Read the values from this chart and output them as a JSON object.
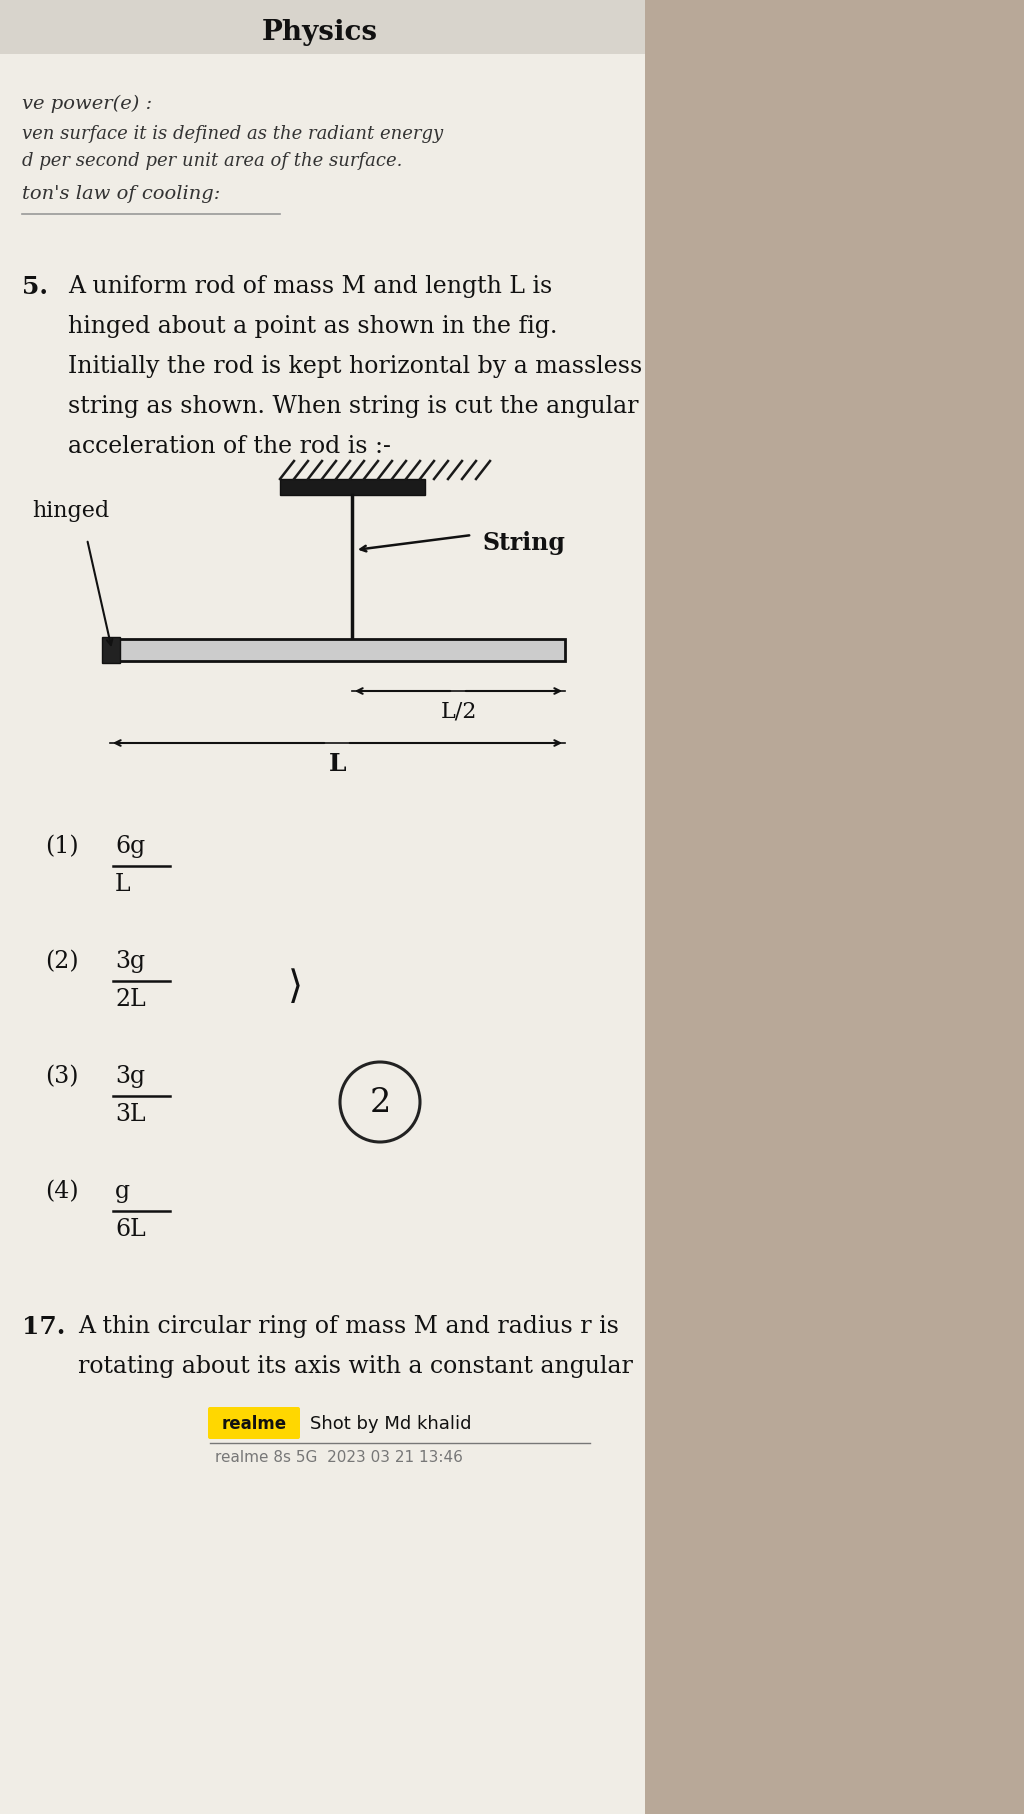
{
  "bg_color": "#b8a898",
  "page_bg": "#f0ede6",
  "page_bg2": "#e8e5de",
  "header_bg": "#d8d4cc",
  "right_bg": "#b8a898",
  "title": "Physics",
  "prev_lines": [
    "ve power(e) :",
    "ven surface it is defined as the radiant energy",
    "d per second per unit area of the surface.",
    "ton's law of cooling:"
  ],
  "q5_num": "5.",
  "q5_lines": [
    "A uniform rod of mass M and length L is",
    "hinged about a point as shown in the fig.",
    "Initially the rod is kept horizontal by a massless",
    "string as shown. When string is cut the angular",
    "acceleration of the rod is :-"
  ],
  "label_string": "String",
  "label_hinged": "hinged",
  "label_L2": "L/2",
  "label_L": "L",
  "options": [
    {
      "num": "(1)",
      "numer": "6g",
      "denom": "L"
    },
    {
      "num": "(2)",
      "numer": "3g",
      "denom": "2L"
    },
    {
      "num": "(3)",
      "numer": "3g",
      "denom": "3L"
    },
    {
      "num": "(4)",
      "numer": "g",
      "denom": "6L"
    }
  ],
  "q17_num": "17.",
  "q17_lines": [
    "A thin circular ring of mass M and radius r is",
    "rotating about its axis with a constant angular"
  ],
  "realme_badge": "realme",
  "realme_text": "Shot by Md khalid",
  "realme_device": "realme 8s 5G  2023 03 21 13:46",
  "badge_color": "#FFD700",
  "text_dark": "#111111",
  "text_mid": "#333333",
  "text_gray": "#666666"
}
